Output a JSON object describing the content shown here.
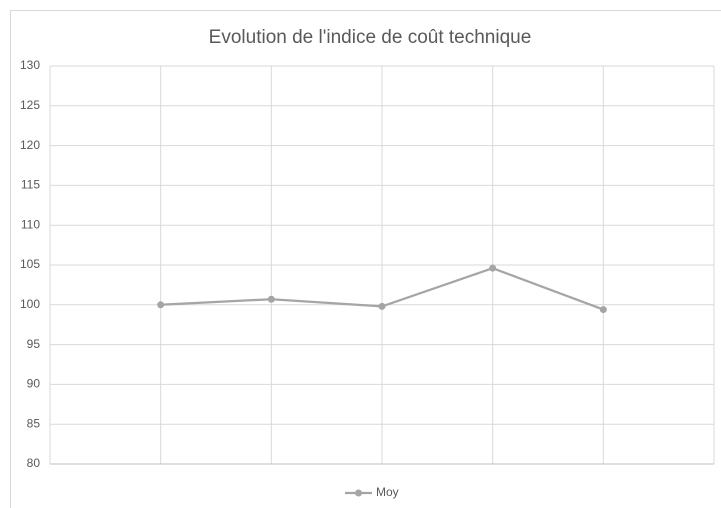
{
  "chart_data": {
    "type": "line",
    "title": "Evolution de l'indice de coût technique",
    "categories": [
      null,
      null,
      null,
      null,
      null,
      null,
      null
    ],
    "series": [
      {
        "name": "Moy",
        "color": "#a5a5a5",
        "values": [
          null,
          100,
          100.7,
          99.8,
          104.6,
          99.4,
          null
        ]
      }
    ],
    "ylim": [
      80,
      130
    ],
    "yticks": [
      80,
      85,
      90,
      95,
      100,
      105,
      110,
      115,
      120,
      125,
      130
    ],
    "grid": true,
    "legend": "bottom"
  }
}
